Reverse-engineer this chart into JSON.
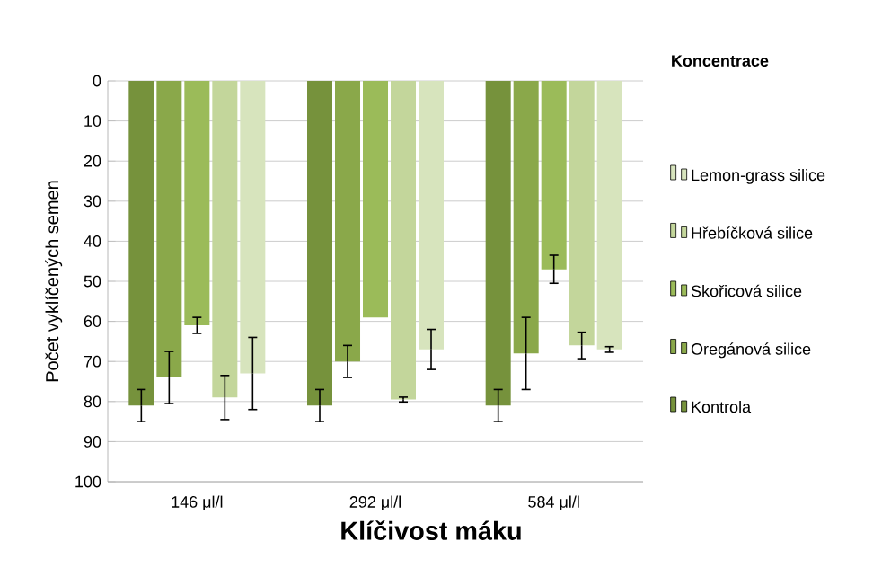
{
  "chart_data": {
    "type": "bar",
    "title": "Klíčivost máku",
    "ylabel": "Počet vyklíčených semen",
    "legend_title": "Koncentrace",
    "categories": [
      "146 μl/l",
      "292 μl/l",
      "584 μl/l"
    ],
    "series": [
      {
        "name": "Kontrola",
        "color": "#76923c",
        "values": [
          81,
          81,
          81
        ],
        "errors": [
          4,
          4,
          4
        ]
      },
      {
        "name": "Oregánová silice",
        "color": "#8aa84a",
        "values": [
          74,
          70,
          68
        ],
        "errors": [
          6.5,
          4,
          9
        ]
      },
      {
        "name": "Skořicová silice",
        "color": "#9bbb59",
        "values": [
          61,
          59,
          47
        ],
        "errors": [
          2,
          null,
          3.5
        ]
      },
      {
        "name": "Hřebíčková silice",
        "color": "#c3d69b",
        "values": [
          79,
          79.5,
          66
        ],
        "errors": [
          5.5,
          0.6,
          3.3
        ]
      },
      {
        "name": "Lemon-grass silice",
        "color": "#d7e4bd",
        "values": [
          73,
          67,
          67
        ],
        "errors": [
          9,
          5,
          0.7
        ]
      }
    ],
    "ylim": [
      100,
      0
    ],
    "yticks": [
      0,
      10,
      20,
      30,
      40,
      50,
      60,
      70,
      80,
      90,
      100
    ],
    "grid": "y",
    "legend": "right"
  }
}
